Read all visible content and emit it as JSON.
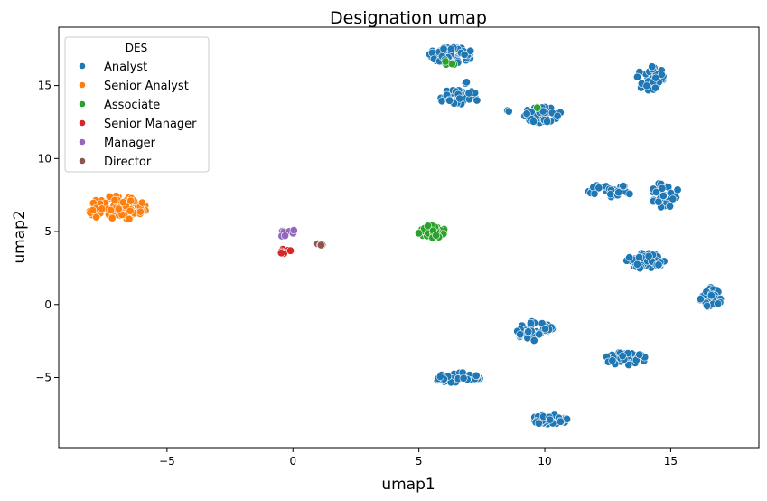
{
  "chart_data": {
    "type": "scatter",
    "title": "Designation umap",
    "xlabel": "umap1",
    "ylabel": "umap2",
    "xlim": [
      -9.3,
      18.5
    ],
    "ylim": [
      -9.8,
      19.0
    ],
    "xticks": [
      -5,
      0,
      5,
      10,
      15
    ],
    "yticks": [
      -5,
      0,
      5,
      10,
      15
    ],
    "grid": false,
    "legend": {
      "title": "DES",
      "placement": "top-left",
      "entries": [
        "Analyst",
        "Senior Analyst",
        "Associate",
        "Senior Manager",
        "Manager",
        "Director"
      ]
    },
    "series": [
      {
        "name": "Analyst",
        "color": "#1f77b4",
        "clusters": [
          {
            "cx": 6.3,
            "cy": 17.1,
            "rx": 0.9,
            "ry": 0.55,
            "n": 70
          },
          {
            "cx": 6.6,
            "cy": 14.2,
            "rx": 0.8,
            "ry": 0.55,
            "n": 35
          },
          {
            "cx": 6.8,
            "cy": 15.2,
            "rx": 0.15,
            "ry": 0.15,
            "n": 2
          },
          {
            "cx": 9.9,
            "cy": 13.0,
            "rx": 0.75,
            "ry": 0.55,
            "n": 45
          },
          {
            "cx": 8.6,
            "cy": 13.3,
            "rx": 0.12,
            "ry": 0.08,
            "n": 2
          },
          {
            "cx": 14.2,
            "cy": 15.5,
            "rx": 0.55,
            "ry": 0.9,
            "n": 40
          },
          {
            "cx": 12.6,
            "cy": 7.8,
            "rx": 0.9,
            "ry": 0.45,
            "n": 35
          },
          {
            "cx": 14.8,
            "cy": 7.5,
            "rx": 0.6,
            "ry": 0.9,
            "n": 35
          },
          {
            "cx": 14.0,
            "cy": 3.0,
            "rx": 0.75,
            "ry": 0.55,
            "n": 45
          },
          {
            "cx": 16.6,
            "cy": 0.5,
            "rx": 0.45,
            "ry": 0.75,
            "n": 40
          },
          {
            "cx": 9.6,
            "cy": -1.8,
            "rx": 0.75,
            "ry": 0.7,
            "n": 40
          },
          {
            "cx": 13.2,
            "cy": -3.7,
            "rx": 0.9,
            "ry": 0.45,
            "n": 45
          },
          {
            "cx": 6.5,
            "cy": -5.0,
            "rx": 0.95,
            "ry": 0.35,
            "n": 40
          },
          {
            "cx": 10.2,
            "cy": -7.9,
            "rx": 0.75,
            "ry": 0.35,
            "n": 40
          }
        ]
      },
      {
        "name": "Senior Analyst",
        "color": "#ff7f0e",
        "clusters": [
          {
            "cx": -7.0,
            "cy": 6.6,
            "rx": 1.2,
            "ry": 0.85,
            "n": 90
          }
        ]
      },
      {
        "name": "Associate",
        "color": "#2ca02c",
        "clusters": [
          {
            "cx": 5.5,
            "cy": 5.0,
            "rx": 0.55,
            "ry": 0.45,
            "n": 45
          },
          {
            "cx": 6.1,
            "cy": 16.5,
            "rx": 0.35,
            "ry": 0.15,
            "n": 5
          },
          {
            "cx": 9.6,
            "cy": 13.5,
            "rx": 0.12,
            "ry": 0.12,
            "n": 2
          }
        ]
      },
      {
        "name": "Senior Manager",
        "color": "#d62728",
        "clusters": [
          {
            "cx": -0.3,
            "cy": 3.6,
            "rx": 0.3,
            "ry": 0.2,
            "n": 9
          }
        ]
      },
      {
        "name": "Manager",
        "color": "#9467bd",
        "clusters": [
          {
            "cx": -0.2,
            "cy": 4.9,
            "rx": 0.35,
            "ry": 0.3,
            "n": 8
          }
        ]
      },
      {
        "name": "Director",
        "color": "#8c564b",
        "clusters": [
          {
            "cx": 1.1,
            "cy": 4.1,
            "rx": 0.15,
            "ry": 0.12,
            "n": 5
          }
        ]
      }
    ]
  }
}
